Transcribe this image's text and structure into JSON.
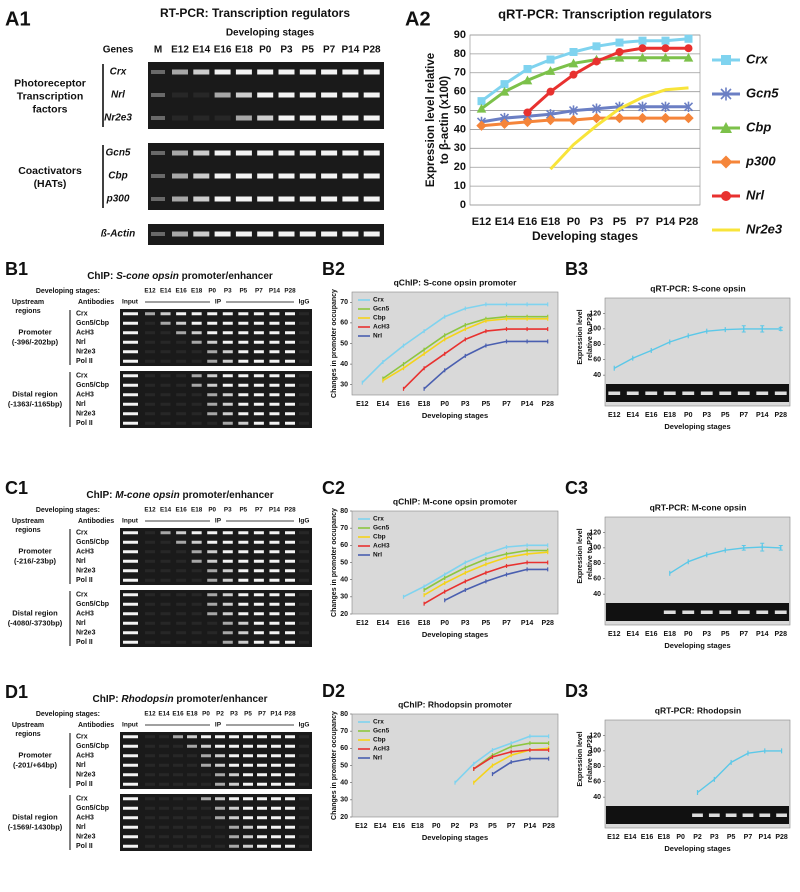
{
  "gels": [
    {
      "label": "A1",
      "title": "RT-PCR: Transcription regulators",
      "subtitle": "Developing stages",
      "columns_header": "Genes",
      "marker_lane": "M",
      "stages": [
        "E12",
        "E14",
        "E16",
        "E18",
        "P0",
        "P3",
        "P5",
        "P7",
        "P14",
        "P28"
      ],
      "groups": [
        {
          "name": [
            "Photoreceptor",
            "Transcription",
            "factors"
          ],
          "rows": [
            "Crx",
            "Nrl",
            "Nr2e3"
          ]
        },
        {
          "name": [
            "Coactivators",
            "(HATs)"
          ],
          "rows": [
            "Gcn5",
            "Cbp",
            "p300"
          ]
        },
        {
          "rows": [
            "ß-Actin"
          ]
        }
      ]
    },
    {
      "label": "B1",
      "title": [
        "ChIP:",
        "S-cone opsin",
        "promoter/enhancer"
      ],
      "stages_header": "Developing stages:",
      "stages": [
        "E12",
        "E14",
        "E16",
        "E18",
        "P0",
        "P3",
        "P5",
        "P7",
        "P14",
        "P28"
      ],
      "region_header": [
        "Upstream",
        "regions"
      ],
      "antibody_header": "Antibodies",
      "input": "Input",
      "ip": "IP",
      "igg": "IgG",
      "groups": [
        {
          "name": [
            "Promoter",
            "(-396/-202bp)"
          ],
          "rows": [
            "Crx",
            "Gcn5/Cbp",
            "AcH3",
            "Nrl",
            "Nr2e3",
            "Pol II"
          ]
        },
        {
          "name": [
            "Distal region",
            "(-1363/-1165bp)"
          ],
          "rows": [
            "Crx",
            "Gcn5/Cbp",
            "AcH3",
            "Nrl",
            "Nr2e3",
            "Pol II"
          ]
        }
      ]
    },
    {
      "label": "C1",
      "title": [
        "ChIP:",
        "M-cone opsin",
        "promoter/enhancer"
      ],
      "stages_header": "Developing stages:",
      "stages": [
        "E12",
        "E14",
        "E16",
        "E18",
        "P0",
        "P3",
        "P5",
        "P7",
        "P14",
        "P28"
      ],
      "region_header": [
        "Upstream",
        "regions"
      ],
      "antibody_header": "Antibodies",
      "input": "Input",
      "ip": "IP",
      "igg": "IgG",
      "groups": [
        {
          "name": [
            "Promoter",
            "(-216/-23bp)"
          ],
          "rows": [
            "Crx",
            "Gcn5/Cbp",
            "AcH3",
            "Nrl",
            "Nr2e3",
            "Pol II"
          ]
        },
        {
          "name": [
            "Distal region",
            "(-4080/-3730bp)"
          ],
          "rows": [
            "Crx",
            "Gcn5/Cbp",
            "AcH3",
            "Nrl",
            "Nr2e3",
            "Pol II"
          ]
        }
      ]
    },
    {
      "label": "D1",
      "title": [
        "ChIP:",
        "Rhodopsin",
        "promoter/enhancer"
      ],
      "stages_header": "Developing stages:",
      "stages": [
        "E12",
        "E14",
        "E16",
        "E18",
        "P0",
        "P2",
        "P3",
        "P5",
        "P7",
        "P14",
        "P28"
      ],
      "region_header": [
        "Upstream",
        "regions"
      ],
      "antibody_header": "Antibodies",
      "input": "Input",
      "ip": "IP",
      "igg": "IgG",
      "groups": [
        {
          "name": [
            "Promoter",
            "(-201/+64bp)"
          ],
          "rows": [
            "Crx",
            "Gcn5/Cbp",
            "AcH3",
            "Nrl",
            "Nr2e3",
            "Pol II"
          ]
        },
        {
          "name": [
            "Distal region",
            "(-1569/-1430bp)"
          ],
          "rows": [
            "Crx",
            "Gcn5/Cbp",
            "AcH3",
            "Nrl",
            "Nr2e3",
            "Pol II"
          ]
        }
      ]
    }
  ],
  "chart_data": [
    {
      "type": "line",
      "label": "A2",
      "title": "qRT-PCR: Transcription regulators",
      "xlabel": "Developing stages",
      "ylabel": [
        "Expression level relative",
        "to β-actin (x100)"
      ],
      "categories": [
        "E12",
        "E14",
        "E16",
        "E18",
        "P0",
        "P3",
        "P5",
        "P7",
        "P14",
        "P28"
      ],
      "ylim": [
        0,
        90
      ],
      "yticks": [
        0,
        10,
        20,
        30,
        40,
        50,
        60,
        70,
        80,
        90
      ],
      "grid": true,
      "background": "#ffffff",
      "legend": "right",
      "series": [
        {
          "name": "Crx",
          "color": "#7fd3ef",
          "marker": "square",
          "values": [
            55,
            64,
            72,
            77,
            81,
            84,
            86,
            87,
            87,
            88
          ]
        },
        {
          "name": "Gcn5",
          "color": "#6b7fc4",
          "marker": "x",
          "values": [
            44,
            46,
            47,
            48,
            50,
            51,
            52,
            52,
            52,
            52
          ]
        },
        {
          "name": "Cbp",
          "color": "#7cc14a",
          "marker": "triangle",
          "values": [
            51,
            60,
            66,
            71,
            75,
            77,
            78,
            78,
            78,
            78
          ]
        },
        {
          "name": "p300",
          "color": "#f5853a",
          "marker": "diamond",
          "values": [
            42,
            43,
            44,
            45,
            45,
            46,
            46,
            46,
            46,
            46
          ]
        },
        {
          "name": "Nrl",
          "color": "#e8312f",
          "marker": "circle",
          "values": [
            null,
            null,
            49,
            60,
            69,
            76,
            81,
            83,
            83,
            83
          ]
        },
        {
          "name": "Nr2e3",
          "color": "#f8e43a",
          "marker": "none",
          "values": [
            null,
            null,
            null,
            19,
            32,
            42,
            51,
            57,
            61,
            62
          ]
        }
      ]
    },
    {
      "type": "line",
      "label": "B2",
      "title": "qChIP: S-cone opsin promoter",
      "xlabel": "Developing stages",
      "ylabel": [
        "Changes in promoter occupancy"
      ],
      "categories": [
        "E12",
        "E14",
        "E16",
        "E18",
        "P0",
        "P3",
        "P5",
        "P7",
        "P14",
        "P28"
      ],
      "ylim": [
        25,
        75
      ],
      "yticks": [
        30,
        40,
        50,
        60,
        70
      ],
      "grid": false,
      "background": "#d9d9d9",
      "legend": "upper left",
      "series": [
        {
          "name": "Crx",
          "color": "#7fd3ef",
          "marker": "dash",
          "values": [
            31,
            41,
            49,
            56,
            63,
            67,
            69,
            69,
            69,
            69
          ]
        },
        {
          "name": "Gcn5",
          "color": "#8dc63f",
          "marker": "dash",
          "values": [
            null,
            33,
            40,
            47,
            54,
            59,
            62,
            63,
            63,
            63
          ]
        },
        {
          "name": "Cbp",
          "color": "#f5d31a",
          "marker": "dash",
          "values": [
            null,
            32,
            38,
            45,
            52,
            57,
            61,
            62,
            62,
            62
          ]
        },
        {
          "name": "AcH3",
          "color": "#e8312f",
          "marker": "dash",
          "values": [
            null,
            null,
            28,
            38,
            45,
            52,
            56,
            57,
            57,
            57
          ]
        },
        {
          "name": "Nrl",
          "color": "#4a5fb0",
          "marker": "dash",
          "values": [
            null,
            null,
            null,
            28,
            37,
            44,
            49,
            51,
            51,
            51
          ]
        }
      ]
    },
    {
      "type": "line",
      "label": "B3",
      "title": "qRT-PCR: S-cone opsin",
      "xlabel": "Developing stages",
      "ylabel": [
        "Expression level",
        "relative to P28"
      ],
      "categories": [
        "E12",
        "E14",
        "E16",
        "E18",
        "P0",
        "P3",
        "P5",
        "P7",
        "P14",
        "P28"
      ],
      "ylim": [
        0,
        140
      ],
      "yticks": [
        40,
        60,
        80,
        100,
        120
      ],
      "grid": false,
      "background": "#d9d9d9",
      "inset_gel": true,
      "color": "#5bc8e8",
      "marker": "dash",
      "values": [
        49,
        62,
        72,
        83,
        91,
        97,
        99,
        100,
        100,
        100
      ],
      "errors": [
        null,
        null,
        null,
        null,
        null,
        null,
        null,
        4,
        4,
        2
      ]
    },
    {
      "type": "line",
      "label": "C2",
      "title": "qChIP: M-cone opsin promoter",
      "xlabel": "Developing stages",
      "ylabel": [
        "Changes in promoter occupancy"
      ],
      "categories": [
        "E12",
        "E14",
        "E16",
        "E18",
        "P0",
        "P3",
        "P5",
        "P7",
        "P14",
        "P28"
      ],
      "ylim": [
        20,
        80
      ],
      "yticks": [
        20,
        30,
        40,
        50,
        60,
        70,
        80
      ],
      "grid": false,
      "background": "#d9d9d9",
      "legend": "upper left",
      "series": [
        {
          "name": "Crx",
          "color": "#7fd3ef",
          "marker": "dash",
          "values": [
            null,
            null,
            30,
            36,
            43,
            50,
            55,
            59,
            60,
            60
          ]
        },
        {
          "name": "Gcn5",
          "color": "#8dc63f",
          "marker": "dash",
          "values": [
            null,
            null,
            null,
            34,
            41,
            47,
            52,
            55,
            57,
            57
          ]
        },
        {
          "name": "Cbp",
          "color": "#f5d31a",
          "marker": "dash",
          "values": [
            null,
            null,
            null,
            31,
            38,
            44,
            49,
            53,
            55,
            56
          ]
        },
        {
          "name": "AcH3",
          "color": "#e8312f",
          "marker": "dash",
          "values": [
            null,
            null,
            null,
            26,
            33,
            39,
            44,
            48,
            50,
            50
          ]
        },
        {
          "name": "Nrl",
          "color": "#4a5fb0",
          "marker": "dash",
          "values": [
            null,
            null,
            null,
            null,
            28,
            34,
            39,
            43,
            46,
            46
          ]
        }
      ]
    },
    {
      "type": "line",
      "label": "C3",
      "title": "qRT-PCR: M-cone opsin",
      "xlabel": "Developing stages",
      "ylabel": [
        "Expression level",
        "relative to P28"
      ],
      "categories": [
        "E12",
        "E14",
        "E16",
        "E18",
        "P0",
        "P3",
        "P5",
        "P7",
        "P14",
        "P28"
      ],
      "ylim": [
        0,
        140
      ],
      "yticks": [
        40,
        60,
        80,
        100,
        120
      ],
      "grid": false,
      "background": "#d9d9d9",
      "inset_gel": true,
      "color": "#5bc8e8",
      "marker": "dash",
      "values": [
        null,
        null,
        null,
        67,
        82,
        91,
        97,
        100,
        101,
        100
      ],
      "errors": [
        null,
        null,
        null,
        null,
        null,
        null,
        null,
        3,
        5,
        3
      ]
    },
    {
      "type": "line",
      "label": "D2",
      "title": "qChIP: Rhodopsin promoter",
      "xlabel": "Developing stages",
      "ylabel": [
        "Changes in promoter occupancy"
      ],
      "categories": [
        "E12",
        "E14",
        "E16",
        "E18",
        "P0",
        "P2",
        "P3",
        "P5",
        "P7",
        "P14",
        "P28"
      ],
      "ylim": [
        20,
        80
      ],
      "yticks": [
        20,
        30,
        40,
        50,
        60,
        70,
        80
      ],
      "grid": false,
      "background": "#d9d9d9",
      "legend": "upper left",
      "series": [
        {
          "name": "Crx",
          "color": "#7fd3ef",
          "marker": "dash",
          "values": [
            null,
            null,
            null,
            null,
            null,
            40,
            51,
            59,
            63,
            67,
            67
          ]
        },
        {
          "name": "Gcn5",
          "color": "#8dc63f",
          "marker": "dash",
          "values": [
            null,
            null,
            null,
            null,
            null,
            null,
            48,
            56,
            61,
            63,
            63
          ]
        },
        {
          "name": "Cbp",
          "color": "#f5d31a",
          "marker": "dash",
          "values": [
            null,
            null,
            null,
            null,
            null,
            null,
            40,
            50,
            56,
            59,
            60
          ]
        },
        {
          "name": "AcH3",
          "color": "#e8312f",
          "marker": "dash",
          "values": [
            null,
            null,
            null,
            null,
            null,
            null,
            48,
            55,
            58,
            59,
            59
          ]
        },
        {
          "name": "Nrl",
          "color": "#4a5fb0",
          "marker": "dash",
          "values": [
            null,
            null,
            null,
            null,
            null,
            null,
            null,
            45,
            52,
            54,
            54
          ]
        }
      ]
    },
    {
      "type": "line",
      "label": "D3",
      "title": "qRT-PCR: Rhodopsin",
      "xlabel": "Developing stages",
      "ylabel": [
        "Expression level",
        "relative to P28"
      ],
      "categories": [
        "E12",
        "E14",
        "E16",
        "E18",
        "P0",
        "P2",
        "P3",
        "P5",
        "P7",
        "P14",
        "P28"
      ],
      "ylim": [
        0,
        140
      ],
      "yticks": [
        40,
        60,
        80,
        100,
        120
      ],
      "grid": false,
      "background": "#d9d9d9",
      "inset_gel": true,
      "color": "#5bc8e8",
      "marker": "dash",
      "values": [
        null,
        null,
        null,
        null,
        null,
        46,
        63,
        85,
        97,
        100,
        100
      ]
    }
  ]
}
